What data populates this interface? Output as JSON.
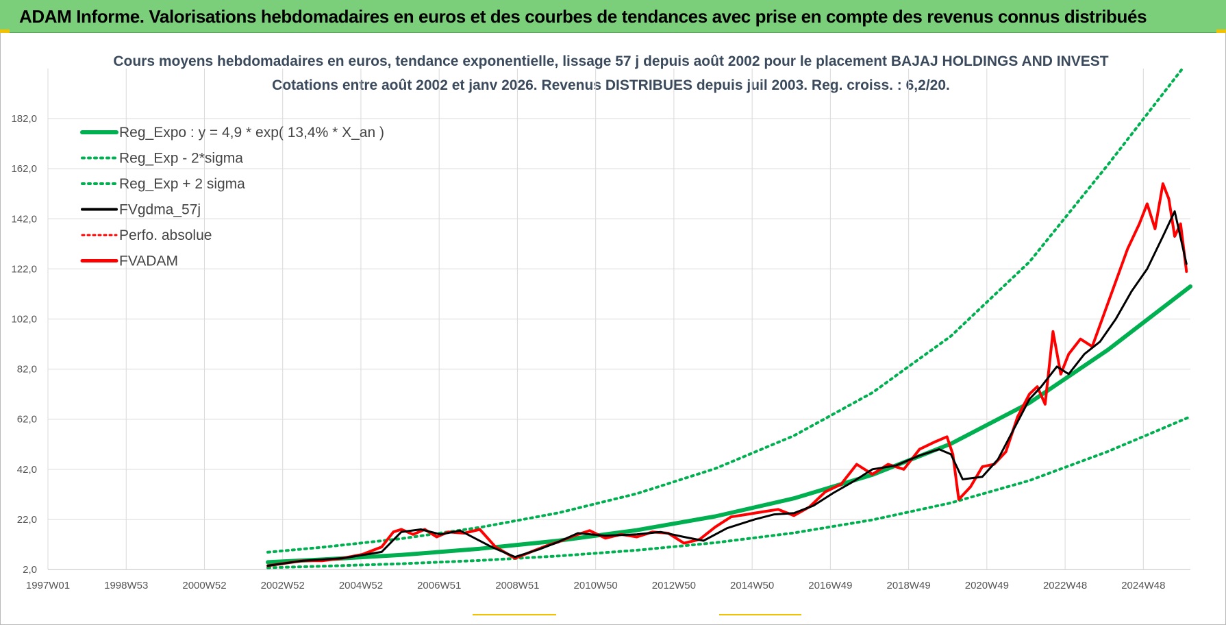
{
  "banner": {
    "title": "ADAM Informe. Valorisations hebdomadaires en euros et des courbes de tendances avec prise en compte des revenus connus distribués"
  },
  "colors": {
    "banner_bg": "#7ccf7a",
    "regression": "#00b050",
    "fvgdma": "#000000",
    "fvadam": "#ff0000",
    "perfo": "#ff0000",
    "grid": "#d9d9d9"
  },
  "chart_data": {
    "type": "line",
    "title": "Cours moyens hebdomadaires en euros, tendance exponentielle, lissage 57 j depuis août 2002 pour le placement BAJAJ HOLDINGS AND INVEST",
    "subtitle": "Cotations entre août 2002 et janv 2026. Revenus DISTRIBUES depuis juil 2003. Reg. croiss. : 6,2/20.",
    "xlabel": "",
    "ylabel": "",
    "x_ticks": [
      "1997W01",
      "1998W53",
      "2000W52",
      "2002W52",
      "2004W52",
      "2006W51",
      "2008W51",
      "2010W50",
      "2012W50",
      "2014W50",
      "2016W49",
      "2018W49",
      "2020W49",
      "2022W48",
      "2024W48"
    ],
    "y_ticks": [
      "2,0",
      "22,0",
      "42,0",
      "62,0",
      "82,0",
      "102,0",
      "122,0",
      "142,0",
      "162,0",
      "182,0"
    ],
    "xlim": [
      1997.0,
      2026.1
    ],
    "ylim": [
      2,
      202
    ],
    "grid": true,
    "legend_position": "top-left",
    "legend": [
      {
        "label": "Reg_Expo : y = 4,9 * exp( 13,4% *  X_an )",
        "style": "solid-thick",
        "color": "#00b050"
      },
      {
        "label": "Reg_Exp - 2*sigma",
        "style": "dotted",
        "color": "#00b050"
      },
      {
        "label": "Reg_Exp + 2 sigma",
        "style": "dotted",
        "color": "#00b050"
      },
      {
        "label": "FVgdma_57j",
        "style": "solid",
        "color": "#000000"
      },
      {
        "label": "Perfo. absolue",
        "style": "dotted",
        "color": "#ff0000"
      },
      {
        "label": "FVADAM",
        "style": "solid-thick",
        "color": "#ff0000"
      }
    ],
    "series": [
      {
        "name": "Reg_Expo : y = 4,9 * exp( 13,4% *  X_an )",
        "x": [
          2002.6,
          2004.0,
          2006.0,
          2008.0,
          2010.0,
          2012.0,
          2014.0,
          2016.0,
          2018.0,
          2020.0,
          2022.0,
          2024.0,
          2026.1
        ],
        "values": [
          4.9,
          6.0,
          7.8,
          10.3,
          13.5,
          17.7,
          23.2,
          30.4,
          39.8,
          52.2,
          68.5,
          89.7,
          115.0
        ]
      },
      {
        "name": "Reg_Exp - 2*sigma",
        "x": [
          2002.6,
          2004.0,
          2006.0,
          2008.0,
          2010.0,
          2012.0,
          2014.0,
          2016.0,
          2018.0,
          2020.0,
          2022.0,
          2024.0,
          2026.1
        ],
        "values": [
          2.7,
          3.3,
          4.3,
          5.6,
          7.4,
          9.7,
          12.7,
          16.6,
          21.8,
          28.6,
          37.5,
          49.1,
          63.0
        ]
      },
      {
        "name": "Reg_Exp + 2 sigma",
        "x": [
          2002.6,
          2004.0,
          2006.0,
          2008.0,
          2010.0,
          2012.0,
          2014.0,
          2016.0,
          2018.0,
          2020.0,
          2022.0,
          2024.0,
          2025.9
        ],
        "values": [
          8.9,
          10.9,
          14.3,
          18.8,
          24.6,
          32.3,
          42.3,
          55.4,
          72.6,
          95.2,
          124.8,
          163.6,
          202.0
        ]
      },
      {
        "name": "FVgdma_57j",
        "x": [
          2002.6,
          2003.5,
          2004.5,
          2005.5,
          2006.0,
          2006.5,
          2007.0,
          2007.5,
          2008.3,
          2008.9,
          2009.5,
          2010.0,
          2010.5,
          2011.2,
          2012.0,
          2012.6,
          2013.2,
          2013.7,
          2014.3,
          2015.0,
          2015.5,
          2016.0,
          2016.5,
          2017.0,
          2017.5,
          2018.0,
          2018.6,
          2019.2,
          2019.7,
          2020.0,
          2020.3,
          2020.8,
          2021.2,
          2021.6,
          2022.0,
          2022.3,
          2022.7,
          2023.0,
          2023.4,
          2023.8,
          2024.2,
          2024.6,
          2025.0,
          2025.4,
          2025.7,
          2026.0
        ],
        "values": [
          3.5,
          5.5,
          6.5,
          9.0,
          17.0,
          18.0,
          16.0,
          17.5,
          11.0,
          7.0,
          10.0,
          13.0,
          16.5,
          15.5,
          16.0,
          17.0,
          15.0,
          13.5,
          18.5,
          22.0,
          24.0,
          24.5,
          27.5,
          32.5,
          37.0,
          42.0,
          43.5,
          47.5,
          50.0,
          48.0,
          38.0,
          39.0,
          46.0,
          58.0,
          70.0,
          75.0,
          83.0,
          80.0,
          88.0,
          93.0,
          102.0,
          113.0,
          122.0,
          135.0,
          145.0,
          124.0
        ]
      },
      {
        "name": "FVADAM",
        "x": [
          2002.6,
          2003.5,
          2004.0,
          2004.5,
          2005.0,
          2005.5,
          2005.8,
          2006.0,
          2006.3,
          2006.6,
          2006.9,
          2007.2,
          2007.6,
          2008.0,
          2008.4,
          2008.9,
          2009.3,
          2009.7,
          2010.0,
          2010.4,
          2010.8,
          2011.2,
          2011.6,
          2012.0,
          2012.4,
          2012.8,
          2013.2,
          2013.6,
          2014.0,
          2014.4,
          2014.8,
          2015.2,
          2015.6,
          2016.0,
          2016.4,
          2016.8,
          2017.2,
          2017.6,
          2018.0,
          2018.4,
          2018.8,
          2019.2,
          2019.6,
          2019.9,
          2020.05,
          2020.2,
          2020.5,
          2020.8,
          2021.1,
          2021.4,
          2021.7,
          2022.0,
          2022.2,
          2022.4,
          2022.6,
          2022.8,
          2023.0,
          2023.3,
          2023.6,
          2023.9,
          2024.2,
          2024.5,
          2024.8,
          2025.0,
          2025.2,
          2025.4,
          2025.55,
          2025.7,
          2025.85,
          2026.0
        ],
        "values": [
          3.5,
          5.5,
          5.5,
          6.5,
          8.0,
          11.0,
          17.0,
          18.0,
          16.0,
          18.0,
          15.0,
          17.0,
          16.5,
          18.0,
          11.0,
          6.5,
          9.0,
          11.5,
          13.0,
          15.5,
          17.5,
          14.5,
          16.0,
          15.0,
          17.0,
          16.5,
          12.5,
          14.0,
          19.0,
          23.0,
          24.0,
          25.0,
          26.0,
          23.5,
          27.0,
          33.0,
          36.0,
          44.0,
          40.0,
          44.0,
          42.0,
          50.0,
          53.0,
          55.0,
          48.0,
          30.0,
          35.0,
          43.0,
          44.0,
          49.0,
          63.0,
          72.0,
          75.0,
          68.0,
          97.0,
          80.0,
          88.0,
          94.0,
          91.0,
          104.0,
          117.0,
          130.0,
          140.0,
          148.0,
          138.0,
          156.0,
          150.0,
          135.0,
          140.0,
          121.0
        ]
      }
    ]
  }
}
